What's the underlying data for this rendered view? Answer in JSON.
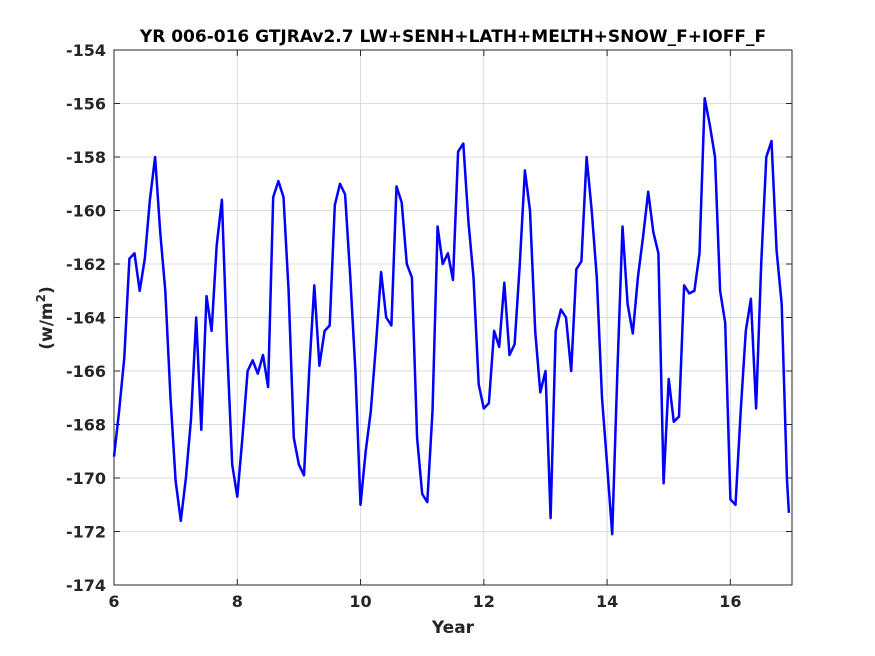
{
  "chart_data": {
    "type": "line",
    "title": "YR 006-016 GTJRAv2.7 LW+SENH+LATH+MELTH+SNOW_F+IOFF_F",
    "xlabel": "Year",
    "ylabel": "(w/m",
    "ylabel_sup": "2",
    "ylabel_end": ")",
    "xlim": [
      6,
      17
    ],
    "ylim": [
      -174,
      -154
    ],
    "xticks": [
      6,
      8,
      10,
      12,
      14,
      16
    ],
    "yticks": [
      -174,
      -172,
      -170,
      -168,
      -166,
      -164,
      -162,
      -160,
      -158,
      -156,
      -154
    ],
    "grid": true,
    "line_color": "#0000ff",
    "series": [
      {
        "points": [
          [
            6.0,
            -169.2
          ],
          [
            6.083,
            -167.5
          ],
          [
            6.167,
            -165.5
          ],
          [
            6.25,
            -161.8
          ],
          [
            6.333,
            -161.6
          ],
          [
            6.417,
            -163.0
          ],
          [
            6.5,
            -161.8
          ],
          [
            6.583,
            -159.6
          ],
          [
            6.667,
            -158.0
          ],
          [
            6.75,
            -160.8
          ],
          [
            6.833,
            -163.0
          ],
          [
            6.917,
            -167.0
          ],
          [
            7.0,
            -170.1
          ],
          [
            7.083,
            -171.6
          ],
          [
            7.167,
            -170.0
          ],
          [
            7.25,
            -167.8
          ],
          [
            7.333,
            -164.0
          ],
          [
            7.417,
            -168.2
          ],
          [
            7.5,
            -163.2
          ],
          [
            7.583,
            -164.5
          ],
          [
            7.667,
            -161.3
          ],
          [
            7.75,
            -159.6
          ],
          [
            7.833,
            -165.0
          ],
          [
            7.917,
            -169.5
          ],
          [
            8.0,
            -170.7
          ],
          [
            8.083,
            -168.5
          ],
          [
            8.167,
            -166.0
          ],
          [
            8.25,
            -165.6
          ],
          [
            8.333,
            -166.1
          ],
          [
            8.417,
            -165.4
          ],
          [
            8.5,
            -166.6
          ],
          [
            8.583,
            -159.5
          ],
          [
            8.667,
            -158.9
          ],
          [
            8.75,
            -159.5
          ],
          [
            8.833,
            -163.0
          ],
          [
            8.917,
            -168.5
          ],
          [
            9.0,
            -169.5
          ],
          [
            9.083,
            -169.9
          ],
          [
            9.167,
            -166.0
          ],
          [
            9.25,
            -162.8
          ],
          [
            9.333,
            -165.8
          ],
          [
            9.417,
            -164.5
          ],
          [
            9.5,
            -164.3
          ],
          [
            9.583,
            -159.8
          ],
          [
            9.667,
            -159.0
          ],
          [
            9.75,
            -159.4
          ],
          [
            9.833,
            -162.5
          ],
          [
            9.917,
            -166.0
          ],
          [
            10.0,
            -171.0
          ],
          [
            10.083,
            -169.0
          ],
          [
            10.167,
            -167.5
          ],
          [
            10.25,
            -165.0
          ],
          [
            10.333,
            -162.3
          ],
          [
            10.417,
            -164.0
          ],
          [
            10.5,
            -164.3
          ],
          [
            10.583,
            -159.1
          ],
          [
            10.667,
            -159.7
          ],
          [
            10.75,
            -162.0
          ],
          [
            10.833,
            -162.5
          ],
          [
            10.917,
            -168.5
          ],
          [
            11.0,
            -170.6
          ],
          [
            11.083,
            -170.9
          ],
          [
            11.167,
            -167.5
          ],
          [
            11.25,
            -160.6
          ],
          [
            11.333,
            -162.0
          ],
          [
            11.417,
            -161.6
          ],
          [
            11.5,
            -162.6
          ],
          [
            11.583,
            -157.8
          ],
          [
            11.667,
            -157.5
          ],
          [
            11.75,
            -160.4
          ],
          [
            11.833,
            -162.5
          ],
          [
            11.917,
            -166.5
          ],
          [
            12.0,
            -167.4
          ],
          [
            12.083,
            -167.2
          ],
          [
            12.167,
            -164.5
          ],
          [
            12.25,
            -165.1
          ],
          [
            12.333,
            -162.7
          ],
          [
            12.417,
            -165.4
          ],
          [
            12.5,
            -165.0
          ],
          [
            12.583,
            -162.0
          ],
          [
            12.667,
            -158.5
          ],
          [
            12.75,
            -160.0
          ],
          [
            12.833,
            -164.5
          ],
          [
            12.917,
            -166.8
          ],
          [
            13.0,
            -166.0
          ],
          [
            13.083,
            -171.5
          ],
          [
            13.167,
            -164.5
          ],
          [
            13.25,
            -163.7
          ],
          [
            13.333,
            -164.0
          ],
          [
            13.417,
            -166.0
          ],
          [
            13.5,
            -162.2
          ],
          [
            13.583,
            -161.9
          ],
          [
            13.667,
            -158.0
          ],
          [
            13.75,
            -160.0
          ],
          [
            13.833,
            -162.5
          ],
          [
            13.917,
            -167.0
          ],
          [
            14.0,
            -169.5
          ],
          [
            14.083,
            -172.1
          ],
          [
            14.167,
            -166.0
          ],
          [
            14.25,
            -160.6
          ],
          [
            14.333,
            -163.5
          ],
          [
            14.417,
            -164.6
          ],
          [
            14.5,
            -162.5
          ],
          [
            14.583,
            -161.0
          ],
          [
            14.667,
            -159.3
          ],
          [
            14.75,
            -160.8
          ],
          [
            14.833,
            -161.6
          ],
          [
            14.917,
            -170.2
          ],
          [
            15.0,
            -166.3
          ],
          [
            15.083,
            -167.9
          ],
          [
            15.167,
            -167.7
          ],
          [
            15.25,
            -162.8
          ],
          [
            15.333,
            -163.1
          ],
          [
            15.417,
            -163.0
          ],
          [
            15.5,
            -161.6
          ],
          [
            15.583,
            -155.8
          ],
          [
            15.667,
            -156.8
          ],
          [
            15.75,
            -158.0
          ],
          [
            15.833,
            -163.0
          ],
          [
            15.917,
            -164.2
          ],
          [
            16.0,
            -170.8
          ],
          [
            16.083,
            -171.0
          ],
          [
            16.167,
            -167.5
          ],
          [
            16.25,
            -164.5
          ],
          [
            16.333,
            -163.3
          ],
          [
            16.417,
            -167.4
          ],
          [
            16.5,
            -162.0
          ],
          [
            16.583,
            -158.0
          ],
          [
            16.667,
            -157.4
          ],
          [
            16.75,
            -161.5
          ],
          [
            16.833,
            -163.5
          ],
          [
            16.917,
            -170.0
          ],
          [
            16.95,
            -171.3
          ]
        ]
      }
    ]
  }
}
